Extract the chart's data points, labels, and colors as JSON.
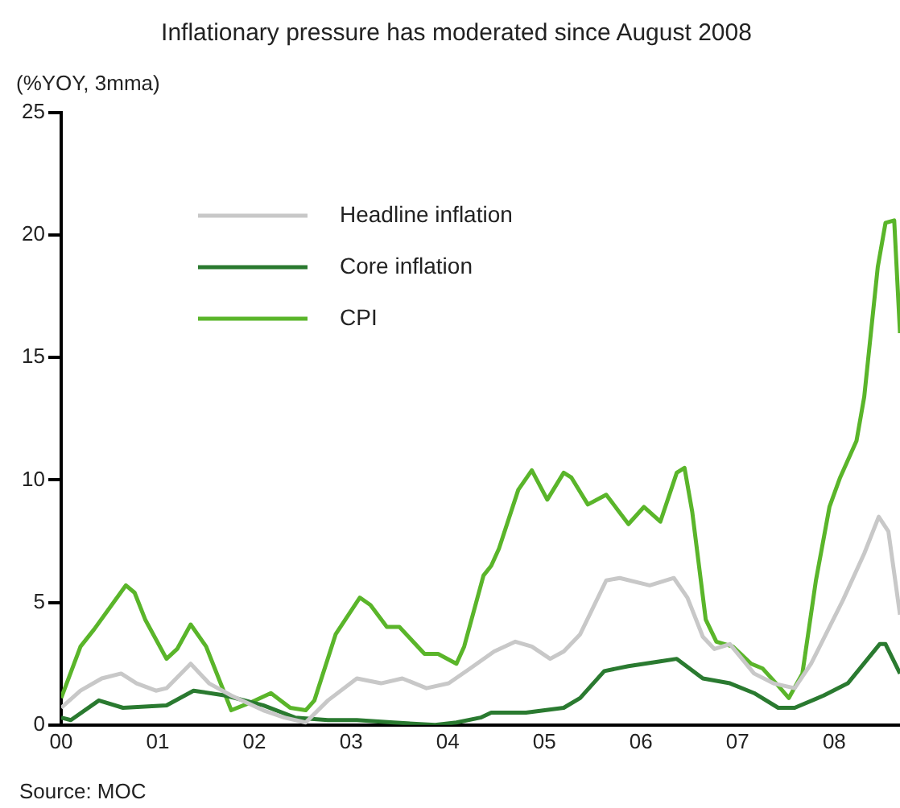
{
  "chart_data": {
    "type": "line",
    "title": "Inflationary pressure has moderated since August 2008",
    "ylabel": "(%YOY, 3mma)",
    "annotations": [
      "Source: MOC"
    ],
    "xlim": [
      0,
      8.68
    ],
    "xticks": [
      {
        "value": 0,
        "label": "00"
      },
      {
        "value": 1,
        "label": "01"
      },
      {
        "value": 2,
        "label": "02"
      },
      {
        "value": 3,
        "label": "03"
      },
      {
        "value": 4,
        "label": "04"
      },
      {
        "value": 5,
        "label": "05"
      },
      {
        "value": 6,
        "label": "06"
      },
      {
        "value": 7,
        "label": "07"
      },
      {
        "value": 8,
        "label": "08"
      }
    ],
    "ylim": [
      0,
      25
    ],
    "yticks": [
      0,
      5,
      10,
      15,
      20,
      25
    ],
    "grid": false,
    "legend": "top left",
    "marker": "none",
    "line_style": "solid",
    "series": [
      {
        "name": "Headline inflation",
        "color": "#c8c8c8",
        "x": [
          0,
          0.2,
          0.42,
          0.62,
          0.78,
          0.98,
          1.09,
          1.34,
          1.53,
          1.76,
          2.09,
          2.31,
          2.53,
          2.76,
          3.06,
          3.31,
          3.53,
          3.78,
          4.01,
          4.23,
          4.48,
          4.7,
          4.87,
          5.06,
          5.2,
          5.37,
          5.64,
          5.78,
          6.09,
          6.34,
          6.48,
          6.64,
          6.76,
          6.92,
          7.17,
          7.37,
          7.59,
          7.76,
          8.09,
          8.31,
          8.46,
          8.56,
          8.68
        ],
        "values": [
          0.7,
          1.4,
          1.9,
          2.1,
          1.7,
          1.4,
          1.5,
          2.5,
          1.7,
          1.2,
          0.6,
          0.3,
          0.1,
          1.0,
          1.9,
          1.7,
          1.9,
          1.5,
          1.7,
          2.3,
          3.0,
          3.4,
          3.2,
          2.7,
          3.0,
          3.7,
          5.9,
          6.0,
          5.7,
          6.0,
          5.2,
          3.6,
          3.1,
          3.3,
          2.1,
          1.7,
          1.5,
          2.5,
          5.1,
          7.0,
          8.5,
          7.9,
          4.5
        ]
      },
      {
        "name": "Core inflation",
        "color": "#2a7a30",
        "x": [
          0,
          0.1,
          0.39,
          0.64,
          1.09,
          1.37,
          1.7,
          2.09,
          2.42,
          2.76,
          3.06,
          3.44,
          3.87,
          4.09,
          4.34,
          4.45,
          4.81,
          5.2,
          5.37,
          5.62,
          5.87,
          6.2,
          6.37,
          6.64,
          6.92,
          7.17,
          7.42,
          7.59,
          7.89,
          8.14,
          8.47,
          8.53,
          8.68
        ],
        "values": [
          0.3,
          0.2,
          1.0,
          0.7,
          0.8,
          1.4,
          1.2,
          0.8,
          0.3,
          0.2,
          0.2,
          0.1,
          0,
          0.1,
          0.3,
          0.5,
          0.5,
          0.7,
          1.1,
          2.2,
          2.4,
          2.6,
          2.7,
          1.9,
          1.7,
          1.3,
          0.7,
          0.7,
          1.2,
          1.7,
          3.3,
          3.3,
          2.1
        ]
      },
      {
        "name": "CPI",
        "color": "#5ab52a",
        "x": [
          0,
          0.2,
          0.34,
          0.67,
          0.76,
          0.87,
          1.09,
          1.2,
          1.34,
          1.5,
          1.76,
          1.95,
          2.17,
          2.37,
          2.53,
          2.62,
          2.84,
          3.09,
          3.2,
          3.37,
          3.5,
          3.76,
          3.9,
          4.09,
          4.17,
          4.37,
          4.45,
          4.53,
          4.73,
          4.87,
          5.03,
          5.2,
          5.28,
          5.45,
          5.64,
          5.87,
          6.03,
          6.2,
          6.37,
          6.45,
          6.53,
          6.67,
          6.78,
          6.95,
          7.14,
          7.26,
          7.42,
          7.53,
          7.67,
          7.81,
          7.95,
          8.06,
          8.23,
          8.31,
          8.45,
          8.53,
          8.62,
          8.68
        ],
        "values": [
          1.1,
          3.2,
          3.9,
          5.7,
          5.4,
          4.3,
          2.7,
          3.1,
          4.1,
          3.2,
          0.6,
          0.9,
          1.3,
          0.7,
          0.6,
          1.0,
          3.7,
          5.2,
          4.9,
          4.0,
          4.0,
          2.9,
          2.9,
          2.5,
          3.2,
          6.1,
          6.5,
          7.2,
          9.6,
          10.4,
          9.2,
          10.3,
          10.1,
          9.0,
          9.4,
          8.2,
          8.9,
          8.3,
          10.3,
          10.5,
          8.7,
          4.3,
          3.4,
          3.2,
          2.5,
          2.3,
          1.6,
          1.1,
          2.1,
          5.9,
          8.9,
          10.1,
          11.6,
          13.4,
          18.7,
          20.5,
          20.6,
          16.0
        ]
      }
    ]
  }
}
